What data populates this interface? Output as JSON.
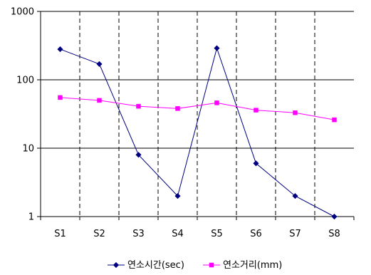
{
  "chart_data": {
    "type": "line",
    "yscale": "log",
    "ylim": [
      1,
      1000
    ],
    "y_ticks": [
      "1",
      "10",
      "100",
      "1000"
    ],
    "categories": [
      "S1",
      "S2",
      "S3",
      "S4",
      "S5",
      "S6",
      "S7",
      "S8"
    ],
    "grid": "horizontal solid at decades, vertical dashed between categories",
    "legend_position": "bottom",
    "series": [
      {
        "name": "연소시간(sec)",
        "color": "#000080",
        "marker": "diamond",
        "values": [
          280,
          170,
          8,
          2,
          290,
          6,
          2,
          1
        ]
      },
      {
        "name": "연소거리(mm)",
        "color": "#ff00ff",
        "marker": "square",
        "values": [
          55,
          50,
          41,
          38,
          46,
          36,
          33,
          26
        ]
      }
    ]
  }
}
